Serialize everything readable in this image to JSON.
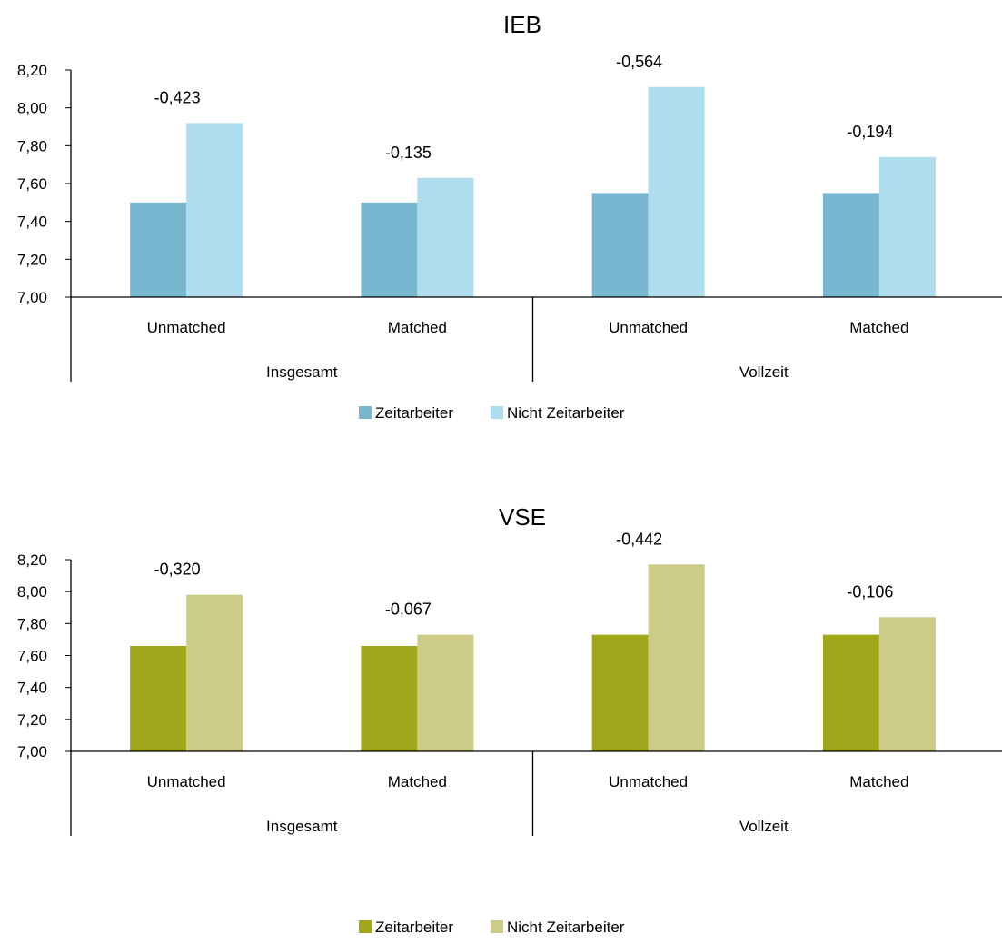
{
  "chart_data": [
    {
      "type": "bar",
      "title": "IEB",
      "ylim": [
        7.0,
        8.2
      ],
      "yticks": [
        "7,00",
        "7,20",
        "7,40",
        "7,60",
        "7,80",
        "8,00",
        "8,20"
      ],
      "groups": [
        {
          "label": "Insgesamt",
          "categories": [
            "Unmatched",
            "Matched"
          ]
        },
        {
          "label": "Vollzeit",
          "categories": [
            "Unmatched",
            "Matched"
          ]
        }
      ],
      "categories": [
        "Unmatched",
        "Matched",
        "Unmatched",
        "Matched"
      ],
      "series": [
        {
          "name": "Zeitarbeiter",
          "color": "#78b7cf",
          "values": [
            7.5,
            7.5,
            7.55,
            7.55
          ]
        },
        {
          "name": "Nicht Zeitarbeiter",
          "color": "#afddee",
          "values": [
            7.92,
            7.63,
            8.11,
            7.74
          ]
        }
      ],
      "annotations": [
        "-0,423",
        "-0,135",
        "-0,564",
        "-0,194"
      ],
      "legend": "bottom",
      "grid": false
    },
    {
      "type": "bar",
      "title": "VSE",
      "ylim": [
        7.0,
        8.2
      ],
      "yticks": [
        "7,00",
        "7,20",
        "7,40",
        "7,60",
        "7,80",
        "8,00",
        "8,20"
      ],
      "groups": [
        {
          "label": "Insgesamt",
          "categories": [
            "Unmatched",
            "Matched"
          ]
        },
        {
          "label": "Vollzeit",
          "categories": [
            "Unmatched",
            "Matched"
          ]
        }
      ],
      "categories": [
        "Unmatched",
        "Matched",
        "Unmatched",
        "Matched"
      ],
      "series": [
        {
          "name": "Zeitarbeiter",
          "color": "#a1a61a",
          "values": [
            7.66,
            7.66,
            7.73,
            7.73
          ]
        },
        {
          "name": "Nicht Zeitarbeiter",
          "color": "#cccb88",
          "values": [
            7.98,
            7.73,
            8.17,
            7.84
          ]
        }
      ],
      "annotations": [
        "-0,320",
        "-0,067",
        "-0,442",
        "-0,106"
      ],
      "legend": "bottom",
      "grid": false
    }
  ]
}
